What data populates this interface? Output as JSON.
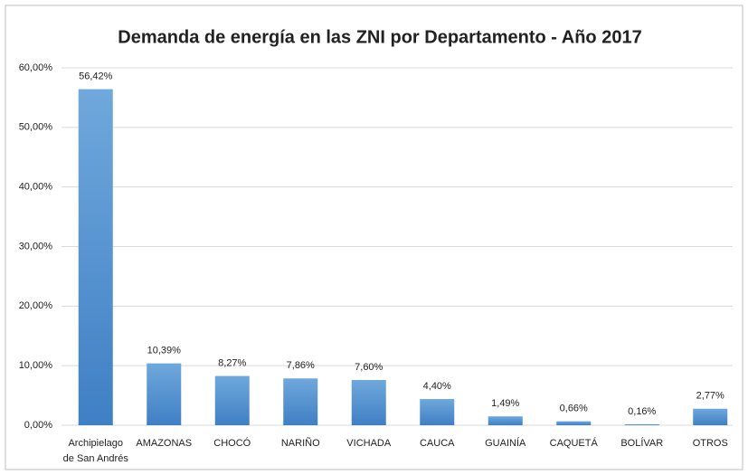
{
  "chart_data": {
    "type": "bar",
    "title": "Demanda de energía en las ZNI por Departamento  - Año 2017",
    "categories": [
      "Archipielago de San Andrés",
      "AMAZONAS",
      "CHOCÓ",
      "NARIÑO",
      "VICHADA",
      "CAUCA",
      "GUAINÍA",
      "CAQUETÁ",
      "BOLÍVAR",
      "OTROS"
    ],
    "values": [
      56.42,
      10.39,
      8.27,
      7.86,
      7.6,
      4.4,
      1.49,
      0.66,
      0.16,
      2.77
    ],
    "value_labels": [
      "56,42%",
      "10,39%",
      "8,27%",
      "7,86%",
      "7,60%",
      "4,40%",
      "1,49%",
      "0,66%",
      "0,16%",
      "2,77%"
    ],
    "color": "#5b9bd5",
    "ylim": [
      0,
      60
    ],
    "yticks": [
      {
        "value": 0,
        "label": "0,00%"
      },
      {
        "value": 10,
        "label": "10,00%"
      },
      {
        "value": 20,
        "label": "20,00%"
      },
      {
        "value": 30,
        "label": "30,00%"
      },
      {
        "value": 40,
        "label": "40,00%"
      },
      {
        "value": 50,
        "label": "50,00%"
      },
      {
        "value": 60,
        "label": "60,00%"
      }
    ],
    "grid": true
  }
}
